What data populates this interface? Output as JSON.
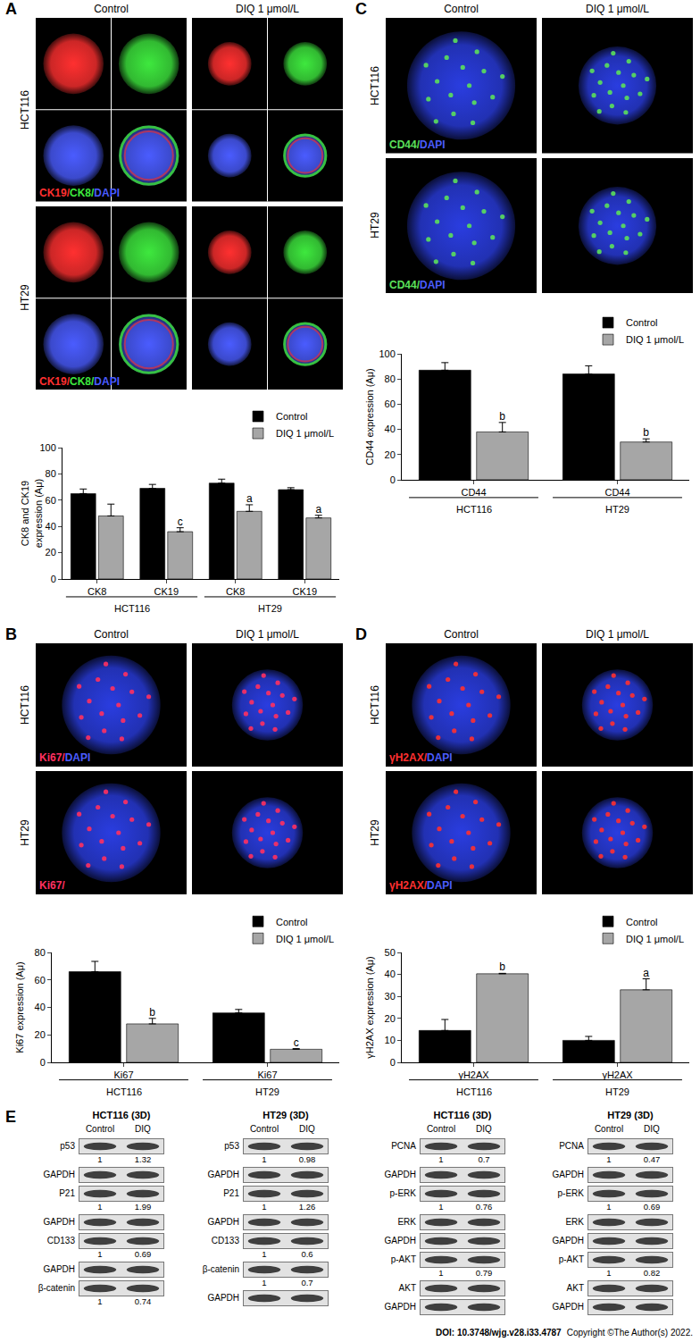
{
  "chart_data": [
    {
      "type": "bar",
      "ylabel": "CK8 and CK19 expression (Aμ)",
      "categories": [
        "CK8",
        "CK19",
        "CK8",
        "CK19"
      ],
      "groups": [
        "HCT116",
        "HCT116",
        "HT29",
        "HT29"
      ],
      "ylim": [
        0,
        100
      ],
      "yticks": [
        0,
        20,
        40,
        60,
        80,
        100
      ],
      "grid": false,
      "legend": "top right",
      "series": [
        {
          "name": "Control",
          "color": "#000000",
          "values": [
            65,
            69,
            73,
            68
          ],
          "errors": [
            3.5,
            3,
            3,
            1.5
          ]
        },
        {
          "name": "DIQ 1 μmol/L",
          "color": "#a6a6a6",
          "values": [
            48,
            36,
            51.5,
            46.5
          ],
          "errors": [
            9,
            3,
            5,
            2
          ],
          "significance": [
            null,
            "c",
            "a",
            "a"
          ]
        }
      ]
    },
    {
      "type": "bar",
      "ylabel": "Ki67 expression (Aμ)",
      "categories": [
        "Ki67",
        "Ki67"
      ],
      "groups": [
        "HCT116",
        "HT29"
      ],
      "ylim": [
        0,
        80
      ],
      "yticks": [
        0,
        20,
        40,
        60,
        80
      ],
      "grid": false,
      "legend": "top right",
      "series": [
        {
          "name": "Control",
          "color": "#000000",
          "values": [
            66,
            36
          ],
          "errors": [
            7.5,
            2.5
          ]
        },
        {
          "name": "DIQ 1 μmol/L",
          "color": "#a6a6a6",
          "values": [
            28,
            9.5
          ],
          "errors": [
            4,
            0.5
          ],
          "significance": [
            "b",
            "c"
          ]
        }
      ]
    },
    {
      "type": "bar",
      "ylabel": "CD44 expression (Aμ)",
      "categories": [
        "CD44",
        "CD44"
      ],
      "groups": [
        "HCT116",
        "HT29"
      ],
      "ylim": [
        0,
        100
      ],
      "yticks": [
        0,
        20,
        40,
        60,
        80,
        100
      ],
      "grid": false,
      "legend": "top right",
      "series": [
        {
          "name": "Control",
          "color": "#000000",
          "values": [
            87,
            84
          ],
          "errors": [
            6,
            6.5
          ]
        },
        {
          "name": "DIQ 1 μmol/L",
          "color": "#a6a6a6",
          "values": [
            38,
            30
          ],
          "errors": [
            7.5,
            2.5
          ],
          "significance": [
            "b",
            "b"
          ]
        }
      ]
    },
    {
      "type": "bar",
      "ylabel": "γH2AX expression (Aμ)",
      "categories": [
        "γH2AX",
        "γH2AX"
      ],
      "groups": [
        "HCT116",
        "HT29"
      ],
      "ylim": [
        0,
        50
      ],
      "yticks": [
        0,
        10,
        20,
        30,
        40,
        50
      ],
      "grid": false,
      "legend": "top right",
      "series": [
        {
          "name": "Control",
          "color": "#000000",
          "values": [
            14.5,
            10
          ],
          "errors": [
            5,
            1.8
          ]
        },
        {
          "name": "DIQ 1 μmol/L",
          "color": "#a6a6a6",
          "values": [
            40.3,
            33
          ],
          "errors": [
            0.2,
            5
          ],
          "significance": [
            "b",
            "a"
          ]
        }
      ]
    }
  ],
  "micrographs": [
    {
      "panel": "A",
      "columns": [
        "Control",
        "DIQ 1 μmol/L"
      ],
      "rows": [
        {
          "label": "HCT116",
          "stain": [
            {
              "text": "CK19/",
              "color": "#ff3030"
            },
            {
              "text": "CK8/",
              "color": "#3ee83e"
            },
            {
              "text": "DAPI",
              "color": "#4a5cff"
            }
          ]
        },
        {
          "label": "HT29",
          "stain": [
            {
              "text": "CK19/",
              "color": "#ff3030"
            },
            {
              "text": "CK8/",
              "color": "#3ee83e"
            },
            {
              "text": "DAPI",
              "color": "#4a5cff"
            }
          ]
        }
      ]
    },
    {
      "panel": "B",
      "columns": [
        "Control",
        "DIQ 1 μmol/L"
      ],
      "rows": [
        {
          "label": "HCT116",
          "stain": [
            {
              "text": "Ki67/",
              "color": "#ff3060"
            },
            {
              "text": "DAPI",
              "color": "#4a5cff"
            }
          ]
        },
        {
          "label": "HT29",
          "stain": [
            {
              "text": "Ki67/",
              "color": "#ff3060"
            }
          ]
        }
      ]
    },
    {
      "panel": "C",
      "columns": [
        "Control",
        "DIQ 1 μmol/L"
      ],
      "rows": [
        {
          "label": "HCT116",
          "stain": [
            {
              "text": "CD44/",
              "color": "#5be05b"
            },
            {
              "text": "DAPI",
              "color": "#4a5cff"
            }
          ]
        },
        {
          "label": "HT29",
          "stain": [
            {
              "text": "CD44/",
              "color": "#5be05b"
            },
            {
              "text": "DAPI",
              "color": "#4a5cff"
            }
          ]
        }
      ]
    },
    {
      "panel": "D",
      "columns": [
        "Control",
        "DIQ 1 μmol/L"
      ],
      "rows": [
        {
          "label": "HCT116",
          "stain": [
            {
              "text": "γH2AX/",
              "color": "#ff3030"
            },
            {
              "text": "DAPI",
              "color": "#4a5cff"
            }
          ]
        },
        {
          "label": "HT29",
          "stain": [
            {
              "text": "γH2AX/",
              "color": "#ff3030"
            },
            {
              "text": "DAPI",
              "color": "#4a5cff"
            }
          ]
        }
      ]
    }
  ],
  "blots": {
    "panel": "E",
    "columns": [
      "Control",
      "DIQ"
    ],
    "groups": [
      {
        "title": "HCT116 (3D)",
        "rows": [
          {
            "label": "p53",
            "values": [
              1,
              1.32
            ]
          },
          {
            "label": "GAPDH"
          },
          {
            "label": "P21",
            "values": [
              1,
              1.99
            ]
          },
          {
            "label": "GAPDH"
          },
          {
            "label": "CD133",
            "values": [
              1,
              0.69
            ]
          },
          {
            "label": "GAPDH"
          },
          {
            "label": "β-catenin",
            "values": [
              1,
              0.74
            ]
          }
        ]
      },
      {
        "title": "HT29 (3D)",
        "rows": [
          {
            "label": "p53",
            "values": [
              1,
              0.98
            ]
          },
          {
            "label": "GAPDH"
          },
          {
            "label": "P21",
            "values": [
              1,
              1.26
            ]
          },
          {
            "label": "GAPDH"
          },
          {
            "label": "CD133",
            "values": [
              1,
              0.6
            ]
          },
          {
            "label": "β-catenin",
            "values": [
              1,
              0.7
            ]
          },
          {
            "label": "GAPDH"
          }
        ]
      },
      {
        "title": "HCT116 (3D)",
        "rows": [
          {
            "label": "PCNA",
            "values": [
              1,
              0.7
            ]
          },
          {
            "label": "GAPDH"
          },
          {
            "label": "p-ERK",
            "values": [
              1,
              0.76
            ]
          },
          {
            "label": "ERK"
          },
          {
            "label": "GAPDH"
          },
          {
            "label": "p-AKT",
            "values": [
              1,
              0.79
            ]
          },
          {
            "label": "AKT"
          },
          {
            "label": "GAPDH"
          }
        ]
      },
      {
        "title": "HT29 (3D)",
        "rows": [
          {
            "label": "PCNA",
            "values": [
              1,
              0.47
            ]
          },
          {
            "label": "GAPDH"
          },
          {
            "label": "p-ERK",
            "values": [
              1,
              0.69
            ]
          },
          {
            "label": "ERK"
          },
          {
            "label": "GAPDH"
          },
          {
            "label": "p-AKT",
            "values": [
              1,
              0.82
            ]
          },
          {
            "label": "AKT"
          },
          {
            "label": "GAPDH"
          }
        ]
      }
    ]
  },
  "source": {
    "doi": "DOI: 10.3748/wjg.v28.i33.4787",
    "copyright": "Copyright ©The Author(s) 2022."
  }
}
